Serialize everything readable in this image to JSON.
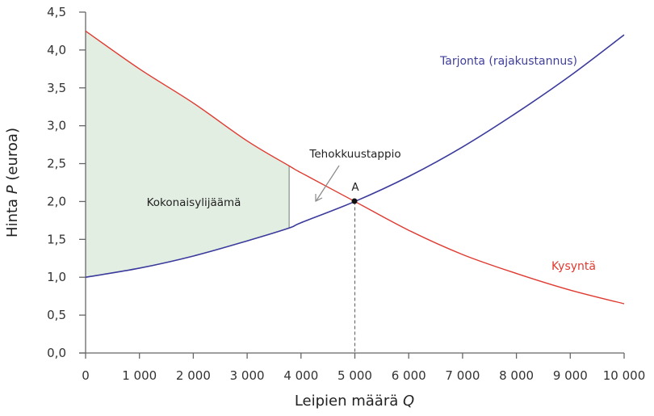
{
  "chart_data": {
    "type": "line",
    "title": "",
    "xlabel": "Leipien määrä Q",
    "ylabel": "Hinta P (euroa)",
    "xlim": [
      0,
      10000
    ],
    "ylim": [
      0,
      4.5
    ],
    "grid": false,
    "x_ticks": [
      "0",
      "1 000",
      "2 000",
      "3 000",
      "4 000",
      "5 000",
      "6 000",
      "7 000",
      "8 000",
      "9 000",
      "10 000"
    ],
    "y_ticks": [
      "0,0",
      "0,5",
      "1,0",
      "1,5",
      "2,0",
      "2,5",
      "3,0",
      "3,5",
      "4,0",
      "4,5"
    ],
    "series": [
      {
        "name": "Tarjonta (rajakustannus)",
        "color": "#3a3a9c",
        "x": [
          0,
          1000,
          2000,
          3000,
          3780,
          4000,
          5000,
          6000,
          7000,
          8000,
          9000,
          10000
        ],
        "values": [
          1.0,
          1.12,
          1.28,
          1.48,
          1.65,
          1.72,
          2.0,
          2.33,
          2.72,
          3.17,
          3.66,
          4.2
        ]
      },
      {
        "name": "Kysyntä",
        "color": "#e03a30",
        "x": [
          0,
          1000,
          2000,
          3000,
          3780,
          4000,
          5000,
          6000,
          7000,
          8000,
          9000,
          10000
        ],
        "values": [
          4.25,
          3.75,
          3.3,
          2.8,
          2.47,
          2.38,
          2.0,
          1.62,
          1.3,
          1.05,
          0.83,
          0.65
        ]
      }
    ],
    "annotations": [
      {
        "text": "Kokonaisylijäämä",
        "type": "shaded-region",
        "x_range": [
          0,
          3780
        ],
        "color": "#e3eee3"
      },
      {
        "text": "Tehokkuustappio",
        "type": "arrow-label",
        "points_to": [
          4150,
          2.0
        ]
      },
      {
        "text": "A",
        "type": "point",
        "x": 5000,
        "y": 2.0
      },
      {
        "text": "",
        "type": "dashed-vline",
        "x": 5000,
        "y_range": [
          0,
          2.0
        ]
      },
      {
        "text": "",
        "type": "vline",
        "x": 3780
      }
    ]
  },
  "labels": {
    "surplus": "Kokonaisylijäämä",
    "deadweight": "Tehokkuustappio",
    "point_a": "A",
    "supply": "Tarjonta (rajakustannus)",
    "demand": "Kysyntä",
    "xlabel_main": "Leipien määrä ",
    "xlabel_var": "Q",
    "ylabel_pre": "Hinta ",
    "ylabel_var": "P",
    "ylabel_post": " (euroa)"
  }
}
